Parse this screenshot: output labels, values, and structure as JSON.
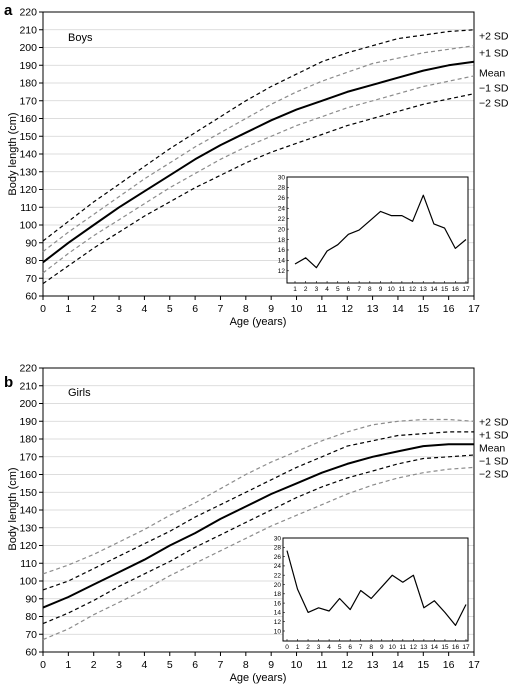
{
  "chart_data": [
    {
      "type": "line",
      "panel": "a",
      "label": "Boys",
      "xlabel": "Age (years)",
      "ylabel": "Body length (cm)",
      "xlim": [
        0,
        17
      ],
      "ylim": [
        60,
        220
      ],
      "x_ticks": [
        "0",
        "1",
        "2",
        "3",
        "4",
        "5",
        "6",
        "7",
        "8",
        "9",
        "10",
        "11",
        "12",
        "13",
        "14",
        "15",
        "16",
        "17"
      ],
      "y_ticks": [
        "60",
        "70",
        "80",
        "90",
        "100",
        "110",
        "120",
        "130",
        "140",
        "150",
        "160",
        "170",
        "180",
        "190",
        "200",
        "210",
        "220"
      ],
      "grid": true,
      "x": [
        0,
        1,
        2,
        3,
        4,
        5,
        6,
        7,
        8,
        9,
        10,
        11,
        12,
        13,
        14,
        15,
        16,
        17
      ],
      "series": [
        {
          "name": "+2 SD",
          "style": "dashed",
          "color": "#000000",
          "values": [
            91,
            102,
            113,
            123,
            133,
            143,
            152,
            161,
            170,
            178,
            185,
            192,
            197,
            201,
            205,
            207,
            209,
            210
          ]
        },
        {
          "name": "+1 SD",
          "style": "dashed",
          "color": "#8c8c8c",
          "values": [
            85,
            96,
            106,
            116,
            126,
            135,
            144,
            152,
            160,
            168,
            175,
            181,
            186,
            191,
            194,
            197,
            199,
            201
          ]
        },
        {
          "name": "Mean",
          "style": "solid",
          "color": "#000000",
          "values": [
            79,
            90,
            100,
            110,
            119,
            128,
            137,
            145,
            152,
            159,
            165,
            170,
            175,
            179,
            183,
            187,
            190,
            192
          ]
        },
        {
          "name": "−1 SD",
          "style": "dashed",
          "color": "#8c8c8c",
          "values": [
            73,
            84,
            94,
            103,
            112,
            121,
            129,
            137,
            144,
            150,
            156,
            161,
            166,
            170,
            174,
            178,
            181,
            184
          ]
        },
        {
          "name": "−2 SD",
          "style": "dashed",
          "color": "#000000",
          "values": [
            67,
            77,
            87,
            96,
            105,
            113,
            121,
            128,
            135,
            141,
            146,
            151,
            156,
            160,
            164,
            168,
            171,
            174
          ]
        }
      ],
      "inset": {
        "type": "line",
        "x_ticks": [
          "1",
          "2",
          "3",
          "4",
          "5",
          "6",
          "7",
          "8",
          "9",
          "10",
          "11",
          "12",
          "13",
          "14",
          "15",
          "16",
          "17"
        ],
        "y_ticks": [
          "12",
          "14",
          "16",
          "18",
          "20",
          "22",
          "24",
          "26",
          "28",
          "30"
        ],
        "ylim": [
          11,
          30
        ],
        "x": [
          1,
          2,
          3,
          4,
          5,
          6,
          7,
          8,
          9,
          10,
          11,
          12,
          13,
          14,
          15,
          16,
          17
        ],
        "values": [
          13.3,
          14.5,
          12.6,
          15.8,
          17.0,
          19.0,
          19.8,
          21.6,
          23.4,
          22.6,
          22.6,
          21.5,
          26.5,
          21.0,
          20.2,
          16.3,
          18.0
        ]
      }
    },
    {
      "type": "line",
      "panel": "b",
      "label": "Girls",
      "xlabel": "Age (years)",
      "ylabel": "Body length (cm)",
      "xlim": [
        0,
        17
      ],
      "ylim": [
        60,
        220
      ],
      "x_ticks": [
        "0",
        "1",
        "2",
        "3",
        "4",
        "5",
        "6",
        "7",
        "8",
        "9",
        "10",
        "11",
        "12",
        "13",
        "14",
        "15",
        "16",
        "17"
      ],
      "y_ticks": [
        "60",
        "70",
        "80",
        "90",
        "100",
        "110",
        "120",
        "130",
        "140",
        "150",
        "160",
        "170",
        "180",
        "190",
        "200",
        "210",
        "220"
      ],
      "grid": true,
      "x": [
        0,
        1,
        2,
        3,
        4,
        5,
        6,
        7,
        8,
        9,
        10,
        11,
        12,
        13,
        14,
        15,
        16,
        17
      ],
      "series": [
        {
          "name": "+2 SD",
          "style": "dashed",
          "color": "#8c8c8c",
          "values": [
            104,
            109,
            115,
            122,
            129,
            137,
            144,
            152,
            160,
            167,
            173,
            179,
            184,
            188,
            190,
            191,
            191,
            190
          ]
        },
        {
          "name": "+1 SD",
          "style": "dashed",
          "color": "#000000",
          "values": [
            95,
            100,
            107,
            114,
            121,
            128,
            136,
            143,
            150,
            157,
            164,
            170,
            176,
            179,
            182,
            183,
            184,
            184
          ]
        },
        {
          "name": "Mean",
          "style": "solid",
          "color": "#000000",
          "values": [
            85,
            91,
            98,
            105,
            112,
            120,
            127,
            135,
            142,
            149,
            155,
            161,
            166,
            170,
            173,
            176,
            177,
            177
          ]
        },
        {
          "name": "−1 SD",
          "style": "dashed",
          "color": "#000000",
          "values": [
            76,
            82,
            89,
            97,
            104,
            111,
            119,
            126,
            133,
            140,
            147,
            153,
            158,
            162,
            166,
            169,
            170,
            171
          ]
        },
        {
          "name": "−2 SD",
          "style": "dashed",
          "color": "#8c8c8c",
          "values": [
            67,
            73,
            81,
            88,
            95,
            103,
            110,
            117,
            124,
            131,
            137,
            143,
            149,
            154,
            158,
            161,
            163,
            164
          ]
        }
      ],
      "inset": {
        "type": "line",
        "x_ticks": [
          "0",
          "1",
          "2",
          "3",
          "4",
          "5",
          "6",
          "7",
          "8",
          "9",
          "10",
          "11",
          "12",
          "13",
          "14",
          "15",
          "16",
          "17"
        ],
        "y_ticks": [
          "10",
          "12",
          "14",
          "16",
          "18",
          "20",
          "22",
          "24",
          "26",
          "28",
          "30"
        ],
        "ylim": [
          10,
          30
        ],
        "x": [
          0,
          1,
          2,
          3,
          4,
          5,
          6,
          7,
          8,
          9,
          10,
          11,
          12,
          13,
          14,
          15,
          16,
          17
        ],
        "values": [
          27.3,
          19.0,
          14.0,
          15.0,
          14.3,
          17.0,
          14.6,
          18.7,
          17.0,
          19.5,
          22.0,
          20.5,
          22.0,
          15.0,
          16.5,
          14.0,
          11.2,
          15.7
        ]
      }
    }
  ]
}
